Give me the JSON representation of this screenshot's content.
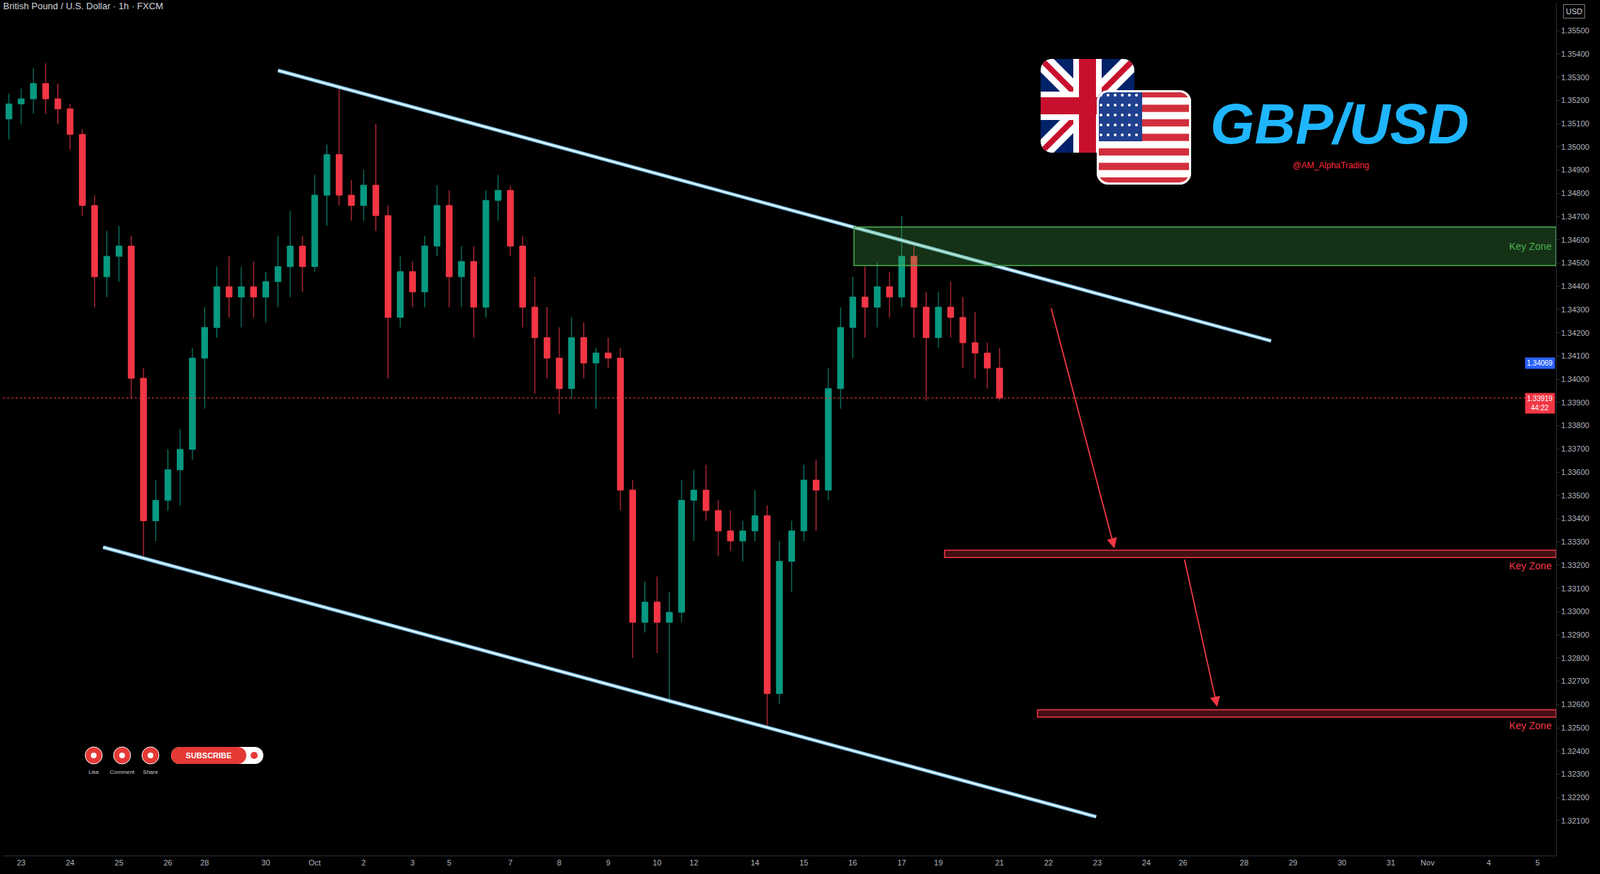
{
  "chart_data": {
    "type": "candlestick",
    "title": "British Pound / U.S. Dollar · 1h · FXCM",
    "currency": "USD",
    "categories": [
      null,
      "23",
      null,
      null,
      null,
      "24",
      null,
      null,
      null,
      "25",
      null,
      null,
      null,
      "26",
      null,
      null,
      "28",
      null,
      null,
      null,
      null,
      "30",
      null,
      null,
      null,
      "Oct",
      null,
      null,
      null,
      "2",
      null,
      null,
      null,
      "3",
      null,
      null,
      "5",
      null,
      null,
      null,
      null,
      "7",
      null,
      null,
      null,
      "8",
      null,
      null,
      null,
      "9",
      null,
      null,
      null,
      "10",
      null,
      null,
      "12",
      null,
      null,
      null,
      null,
      "14",
      null,
      null,
      null,
      "15",
      null,
      null,
      null,
      "16",
      null,
      null,
      null,
      "17",
      null,
      null,
      "19",
      null,
      null,
      null,
      null,
      "21",
      null,
      null,
      null,
      "22",
      null,
      null,
      null,
      "23",
      null,
      null,
      null,
      "24",
      null,
      null,
      "26",
      null,
      null,
      null,
      null,
      "28",
      null,
      null,
      null,
      "29",
      null,
      null,
      null,
      "30",
      null,
      null,
      null,
      "31",
      null,
      null,
      "Nov",
      null,
      null,
      null,
      null,
      "4",
      null,
      null,
      null,
      "5",
      null
    ],
    "open": [
      1.3512,
      1.35185,
      1.35207,
      1.35273,
      1.35207,
      1.35164,
      1.35054,
      1.34748,
      1.34441,
      1.34529,
      1.34573,
      1.34004,
      1.33391,
      1.33479,
      1.3361,
      1.33698,
      1.34091,
      1.34223,
      1.34398,
      1.34354,
      1.34398,
      1.34354,
      1.3442,
      1.34485,
      1.34573,
      1.34485,
      1.34792,
      1.34967,
      1.34792,
      1.34748,
      1.34835,
      1.34704,
      1.34266,
      1.34463,
      1.34376,
      1.34573,
      1.34748,
      1.34441,
      1.34507,
      1.3431,
      1.3477,
      1.34813,
      1.34573,
      1.3431,
      1.34179,
      1.34091,
      1.3396,
      1.34179,
      1.3407,
      1.34113,
      1.34091,
      1.33523,
      1.32954,
      1.33041,
      1.32954,
      1.32997,
      1.33479,
      1.33523,
      1.33435,
      1.33347,
      1.33304,
      1.33347,
      1.33413,
      1.32647,
      1.33216,
      1.33347,
      1.33566,
      1.33523,
      1.3396,
      1.34223,
      1.34354,
      1.3431,
      1.34398,
      1.34354,
      1.34529,
      1.3431,
      1.34179,
      1.3431,
      1.34266,
      1.34157,
      1.34113,
      1.34048,
      null,
      null,
      null,
      null,
      null,
      null,
      null,
      null,
      null,
      null,
      null,
      null,
      null,
      null,
      null,
      null,
      null,
      null,
      null,
      null,
      null,
      null,
      null,
      null,
      null,
      null,
      null,
      null,
      null,
      null,
      null,
      null,
      null,
      null,
      null,
      null,
      null,
      null,
      null,
      null,
      null,
      null,
      null,
      null,
      null
    ],
    "high": [
      1.35229,
      1.35251,
      1.35339,
      1.3536,
      1.35273,
      1.35185,
      1.35076,
      1.34792,
      1.34638,
      1.3466,
      1.34617,
      1.34048,
      1.33566,
      1.33698,
      1.33785,
      1.34135,
      1.3431,
      1.34485,
      1.34529,
      1.34485,
      1.34507,
      1.34463,
      1.34617,
      1.34726,
      1.34617,
      1.34879,
      1.3501,
      1.35251,
      1.34857,
      1.34901,
      1.35098,
      1.34748,
      1.34529,
      1.34507,
      1.34617,
      1.34835,
      1.34813,
      1.34573,
      1.34573,
      1.34813,
      1.34879,
      1.34835,
      1.34617,
      1.34441,
      1.3431,
      1.34223,
      1.34266,
      1.34245,
      1.34135,
      1.34179,
      1.34135,
      1.33566,
      1.33129,
      1.33151,
      1.33085,
      1.33566,
      1.3361,
      1.33632,
      1.33479,
      1.33435,
      1.33391,
      1.33523,
      1.33457,
      1.33304,
      1.33391,
      1.33632,
      1.33654,
      1.34048,
      1.3431,
      1.34441,
      1.34485,
      1.34507,
      1.34463,
      1.34704,
      1.34573,
      1.34376,
      1.34376,
      1.3442,
      1.34354,
      1.34288,
      1.34157,
      1.34135,
      null,
      null,
      null,
      null,
      null,
      null,
      null,
      null,
      null,
      null,
      null,
      null,
      null,
      null,
      null,
      null,
      null,
      null,
      null,
      null,
      null,
      null,
      null,
      null,
      null,
      null,
      null,
      null,
      null,
      null,
      null,
      null,
      null,
      null,
      null,
      null,
      null,
      null,
      null,
      null,
      null,
      null,
      null,
      null,
      null
    ],
    "low": [
      1.35032,
      1.35098,
      1.35142,
      1.35142,
      1.35098,
      1.34988,
      1.34704,
      1.3431,
      1.34354,
      1.3442,
      1.33916,
      1.33238,
      1.33304,
      1.33435,
      1.33457,
      1.33654,
      1.33873,
      1.34179,
      1.34266,
      1.34223,
      1.34266,
      1.34245,
      1.3431,
      1.34354,
      1.34376,
      1.34463,
      1.3466,
      1.34748,
      1.34682,
      1.34682,
      1.34638,
      1.34004,
      1.34223,
      1.3431,
      1.3431,
      1.34529,
      1.3431,
      1.3431,
      1.34179,
      1.34266,
      1.34682,
      1.34529,
      1.34223,
      1.33938,
      1.34004,
      1.33851,
      1.33916,
      1.34004,
      1.33873,
      1.34048,
      1.33435,
      1.328,
      1.3291,
      1.32822,
      1.32604,
      1.32954,
      1.33304,
      1.33391,
      1.33238,
      1.3326,
      1.33216,
      1.33304,
      1.32494,
      1.32604,
      1.33085,
      1.33304,
      1.33347,
      1.33479,
      1.33873,
      1.34091,
      1.34179,
      1.34223,
      1.34266,
      1.3431,
      1.34179,
      1.33908,
      1.34135,
      1.34179,
      1.34048,
      1.34004,
      1.3396,
      1.33908,
      null,
      null,
      null,
      null,
      null,
      null,
      null,
      null,
      null,
      null,
      null,
      null,
      null,
      null,
      null,
      null,
      null,
      null,
      null,
      null,
      null,
      null,
      null,
      null,
      null,
      null,
      null,
      null,
      null,
      null,
      null,
      null,
      null,
      null,
      null,
      null,
      null,
      null,
      null,
      null,
      null,
      null,
      null,
      null,
      null
    ],
    "close": [
      1.35185,
      1.35207,
      1.35273,
      1.35207,
      1.35164,
      1.35054,
      1.34748,
      1.34441,
      1.34529,
      1.34573,
      1.34004,
      1.33391,
      1.33479,
      1.3361,
      1.33698,
      1.34091,
      1.34223,
      1.34398,
      1.34354,
      1.34398,
      1.34354,
      1.3442,
      1.34485,
      1.34573,
      1.34485,
      1.34792,
      1.34967,
      1.34792,
      1.34748,
      1.34835,
      1.34704,
      1.34266,
      1.34463,
      1.34376,
      1.34573,
      1.34748,
      1.34441,
      1.34507,
      1.3431,
      1.3477,
      1.34813,
      1.34573,
      1.3431,
      1.34179,
      1.34091,
      1.3396,
      1.34179,
      1.3407,
      1.34113,
      1.34091,
      1.33523,
      1.32954,
      1.33041,
      1.32954,
      1.32997,
      1.33479,
      1.33523,
      1.33435,
      1.33347,
      1.33304,
      1.33347,
      1.33413,
      1.32647,
      1.33216,
      1.33347,
      1.33566,
      1.33523,
      1.3396,
      1.34223,
      1.34354,
      1.3431,
      1.34398,
      1.34354,
      1.34529,
      1.3431,
      1.34179,
      1.3431,
      1.34266,
      1.34157,
      1.34113,
      1.34048,
      1.33919,
      null,
      null,
      null,
      null,
      null,
      null,
      null,
      null,
      null,
      null,
      null,
      null,
      null,
      null,
      null,
      null,
      null,
      null,
      null,
      null,
      null,
      null,
      null,
      null,
      null,
      null,
      null,
      null,
      null,
      null,
      null,
      null,
      null,
      null,
      null,
      null,
      null,
      null,
      null,
      null,
      null,
      null,
      null,
      null,
      null
    ],
    "ylim": [
      1.3195,
      1.3562
    ],
    "yticks": [
      {
        "value": 1.321,
        "label": "1.32100"
      },
      {
        "value": 1.322,
        "label": "1.32200"
      },
      {
        "value": 1.323,
        "label": "1.32300"
      },
      {
        "value": 1.324,
        "label": "1.32400"
      },
      {
        "value": 1.325,
        "label": "1.32500"
      },
      {
        "value": 1.326,
        "label": "1.32600"
      },
      {
        "value": 1.327,
        "label": "1.32700"
      },
      {
        "value": 1.328,
        "label": "1.32800"
      },
      {
        "value": 1.329,
        "label": "1.32900"
      },
      {
        "value": 1.33,
        "label": "1.33000"
      },
      {
        "value": 1.331,
        "label": "1.33100"
      },
      {
        "value": 1.332,
        "label": "1.33200"
      },
      {
        "value": 1.333,
        "label": "1.33300"
      },
      {
        "value": 1.334,
        "label": "1.33400"
      },
      {
        "value": 1.335,
        "label": "1.33500"
      },
      {
        "value": 1.336,
        "label": "1.33600"
      },
      {
        "value": 1.337,
        "label": "1.33700"
      },
      {
        "value": 1.338,
        "label": "1.33800"
      },
      {
        "value": 1.339,
        "label": "1.33900"
      },
      {
        "value": 1.34,
        "label": "1.34000"
      },
      {
        "value": 1.341,
        "label": "1.34100"
      },
      {
        "value": 1.342,
        "label": "1.34200"
      },
      {
        "value": 1.343,
        "label": "1.34300"
      },
      {
        "value": 1.344,
        "label": "1.34400"
      },
      {
        "value": 1.345,
        "label": "1.34500"
      },
      {
        "value": 1.346,
        "label": "1.34600"
      },
      {
        "value": 1.347,
        "label": "1.34700"
      },
      {
        "value": 1.348,
        "label": "1.34800"
      },
      {
        "value": 1.349,
        "label": "1.34900"
      },
      {
        "value": 1.35,
        "label": "1.35000"
      },
      {
        "value": 1.351,
        "label": "1.35100"
      },
      {
        "value": 1.352,
        "label": "1.35200"
      },
      {
        "value": 1.353,
        "label": "1.35300"
      },
      {
        "value": 1.354,
        "label": "1.35400"
      },
      {
        "value": 1.355,
        "label": "1.35500"
      }
    ],
    "grid": false,
    "price_labels": [
      {
        "value": 1.34069,
        "label": "1.34069",
        "color": "#2962ff"
      },
      {
        "value": 1.33919,
        "label": "1.33919",
        "color": "#f23645",
        "countdown": "44:22"
      }
    ],
    "channel": [
      {
        "x": [
          22.0,
          103.2
        ],
        "y": [
          1.35329,
          1.34165
        ]
      },
      {
        "x": [
          7.7,
          88.9
        ],
        "y": [
          1.33277,
          1.32117
        ]
      }
    ],
    "zones": [
      {
        "label": "Key Zone",
        "x0": 69.1,
        "y0": 1.34489,
        "y1": 1.34655,
        "color": "#4caf50"
      },
      {
        "label": "Key Zone",
        "x0": 76.5,
        "y0": 1.33233,
        "y1": 1.33264,
        "color": "#f23645"
      },
      {
        "label": "Key Zone",
        "x0": 84.1,
        "y0": 1.32546,
        "y1": 1.32577,
        "color": "#f23645"
      }
    ],
    "arrows": [
      {
        "from": [
          85.2,
          1.3431
        ],
        "to": [
          90.4,
          1.33272
        ]
      },
      {
        "from": [
          96.1,
          1.33229
        ],
        "to": [
          98.8,
          1.3259
        ]
      }
    ],
    "branding": {
      "symbol": "GBP/USD",
      "handle": "@AM_AlphaTrading",
      "actions": [
        "Like",
        "Comment",
        "Share"
      ],
      "subscribe": "SUBSCRIBE"
    }
  }
}
